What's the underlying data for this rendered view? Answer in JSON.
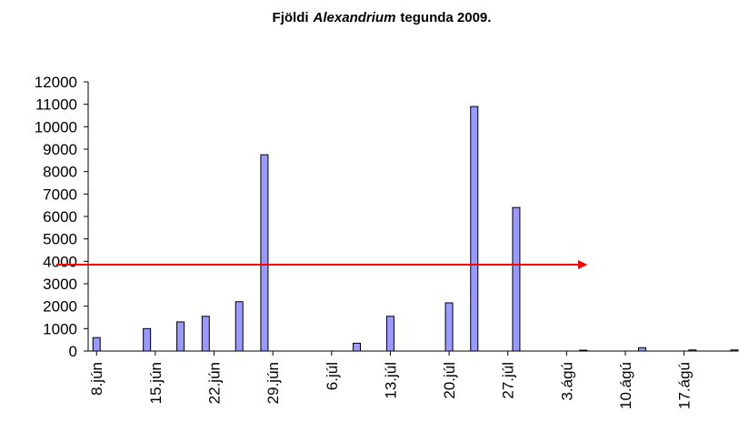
{
  "chart_data": {
    "type": "bar",
    "title_parts": [
      "Fjöldi",
      "Alexandrium",
      "tegunda 2009."
    ],
    "x": [
      159,
      165,
      169,
      172,
      176,
      179,
      190,
      194,
      201,
      204,
      209,
      217,
      224,
      230,
      235
    ],
    "values": [
      600,
      1000,
      1300,
      1550,
      2200,
      8750,
      350,
      1550,
      2150,
      10900,
      6400,
      40,
      150,
      50,
      50
    ],
    "color": "#9999ff",
    "xlim": [
      158,
      235
    ],
    "xticks": [
      {
        "value": 159,
        "label": "8.jún"
      },
      {
        "value": 166,
        "label": "15.jún"
      },
      {
        "value": 173,
        "label": "22.jún"
      },
      {
        "value": 180,
        "label": "29.jún"
      },
      {
        "value": 187,
        "label": "6.júl"
      },
      {
        "value": 194,
        "label": "13.júl"
      },
      {
        "value": 201,
        "label": "20.júl"
      },
      {
        "value": 208,
        "label": "27.júl"
      },
      {
        "value": 215,
        "label": "3.ágú"
      },
      {
        "value": 222,
        "label": "10.ágú"
      },
      {
        "value": 229,
        "label": "17.ágú"
      }
    ],
    "ylim": [
      0,
      12000
    ],
    "yticks": [
      0,
      1000,
      2000,
      3000,
      4000,
      5000,
      6000,
      7000,
      8000,
      9000,
      10000,
      11000,
      12000
    ],
    "grid": false,
    "reference_line": {
      "value": 3850,
      "color": "#ff0000"
    }
  }
}
